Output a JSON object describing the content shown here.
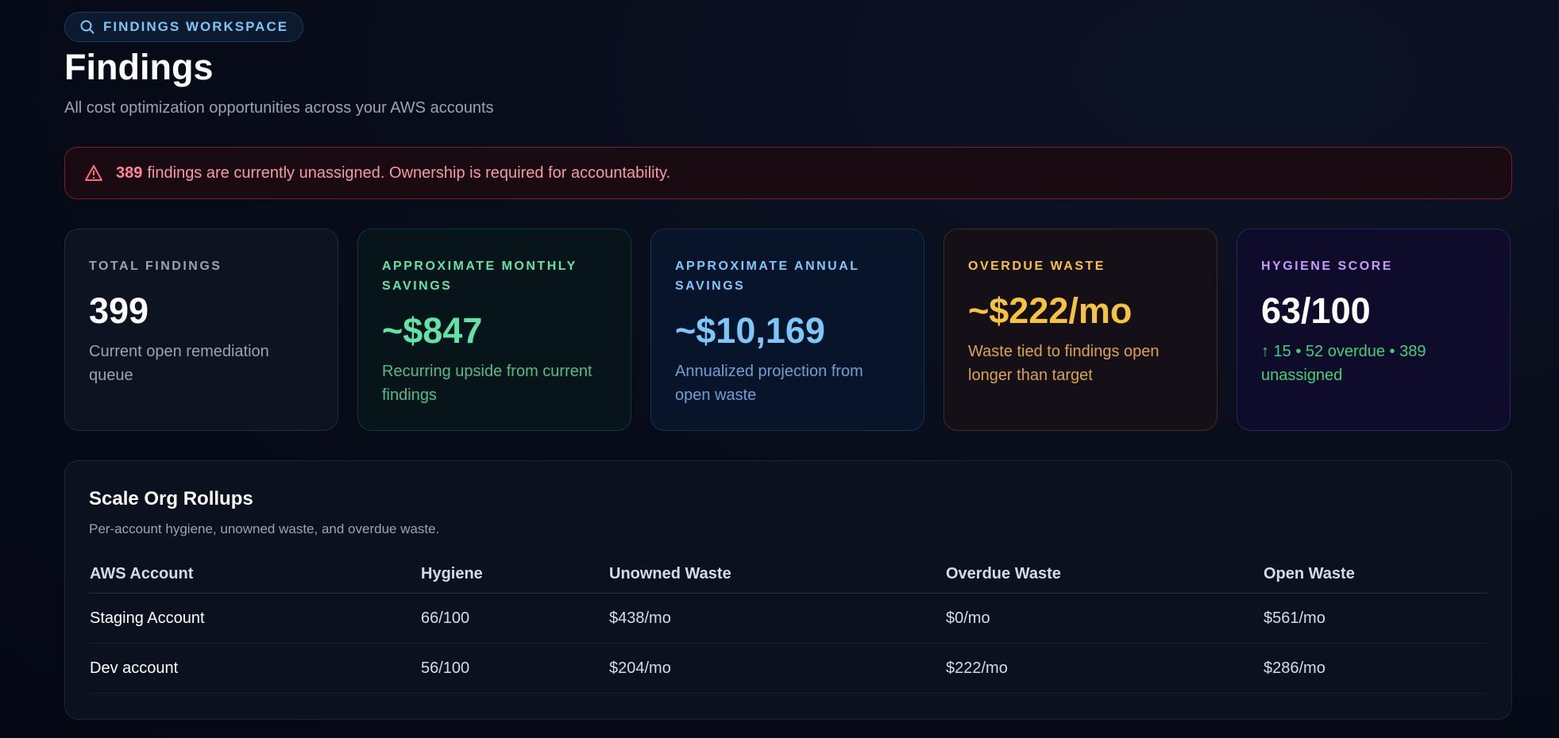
{
  "header": {
    "badge": "FINDINGS WORKSPACE",
    "title": "Findings",
    "subtitle": "All cost optimization opportunities across your AWS accounts"
  },
  "alert": {
    "count": "389",
    "message": "findings are currently unassigned. Ownership is required for accountability."
  },
  "cards": [
    {
      "label": "TOTAL FINDINGS",
      "value": "399",
      "description": "Current open remediation queue"
    },
    {
      "label": "APPROXIMATE MONTHLY SAVINGS",
      "value": "~$847",
      "description": "Recurring upside from current findings"
    },
    {
      "label": "APPROXIMATE ANNUAL SAVINGS",
      "value": "~$10,169",
      "description": "Annualized projection from open waste"
    },
    {
      "label": "OVERDUE WASTE",
      "value": "~$222/mo",
      "description": "Waste tied to findings open longer than target"
    },
    {
      "label": "HYGIENE SCORE",
      "value": "63/100",
      "description": "↑ 15 • 52 overdue • 389 unassigned"
    }
  ],
  "table": {
    "title": "Scale Org Rollups",
    "subtitle": "Per-account hygiene, unowned waste, and overdue waste.",
    "columns": [
      "AWS Account",
      "Hygiene",
      "Unowned Waste",
      "Overdue Waste",
      "Open Waste"
    ],
    "rows": [
      [
        "Staging Account",
        "66/100",
        "$438/mo",
        "$0/mo",
        "$561/mo"
      ],
      [
        "Dev account",
        "56/100",
        "$204/mo",
        "$222/mo",
        "$286/mo"
      ]
    ]
  }
}
